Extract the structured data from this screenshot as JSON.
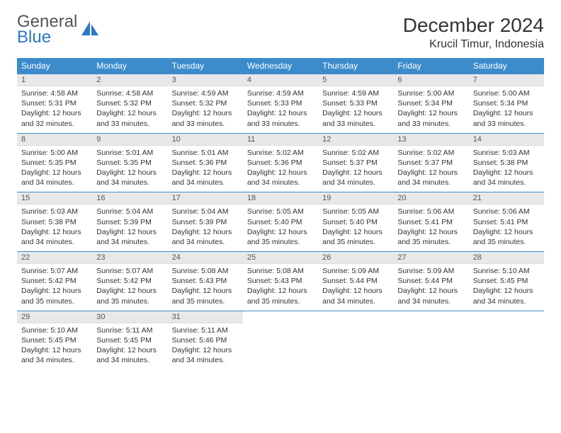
{
  "logo": {
    "line1": "General",
    "line2": "Blue"
  },
  "title": "December 2024",
  "location": "Krucil Timur, Indonesia",
  "colors": {
    "header_bg": "#3c8ccc",
    "header_text": "#ffffff",
    "daynum_bg": "#e8e8e8",
    "row_border": "#3c8ccc",
    "logo_gray": "#555555",
    "logo_blue": "#2b78c4",
    "body_text": "#333333"
  },
  "weekdays": [
    "Sunday",
    "Monday",
    "Tuesday",
    "Wednesday",
    "Thursday",
    "Friday",
    "Saturday"
  ],
  "days": [
    {
      "n": 1,
      "sr": "4:58 AM",
      "ss": "5:31 PM",
      "dl": "12 hours and 32 minutes."
    },
    {
      "n": 2,
      "sr": "4:58 AM",
      "ss": "5:32 PM",
      "dl": "12 hours and 33 minutes."
    },
    {
      "n": 3,
      "sr": "4:59 AM",
      "ss": "5:32 PM",
      "dl": "12 hours and 33 minutes."
    },
    {
      "n": 4,
      "sr": "4:59 AM",
      "ss": "5:33 PM",
      "dl": "12 hours and 33 minutes."
    },
    {
      "n": 5,
      "sr": "4:59 AM",
      "ss": "5:33 PM",
      "dl": "12 hours and 33 minutes."
    },
    {
      "n": 6,
      "sr": "5:00 AM",
      "ss": "5:34 PM",
      "dl": "12 hours and 33 minutes."
    },
    {
      "n": 7,
      "sr": "5:00 AM",
      "ss": "5:34 PM",
      "dl": "12 hours and 33 minutes."
    },
    {
      "n": 8,
      "sr": "5:00 AM",
      "ss": "5:35 PM",
      "dl": "12 hours and 34 minutes."
    },
    {
      "n": 9,
      "sr": "5:01 AM",
      "ss": "5:35 PM",
      "dl": "12 hours and 34 minutes."
    },
    {
      "n": 10,
      "sr": "5:01 AM",
      "ss": "5:36 PM",
      "dl": "12 hours and 34 minutes."
    },
    {
      "n": 11,
      "sr": "5:02 AM",
      "ss": "5:36 PM",
      "dl": "12 hours and 34 minutes."
    },
    {
      "n": 12,
      "sr": "5:02 AM",
      "ss": "5:37 PM",
      "dl": "12 hours and 34 minutes."
    },
    {
      "n": 13,
      "sr": "5:02 AM",
      "ss": "5:37 PM",
      "dl": "12 hours and 34 minutes."
    },
    {
      "n": 14,
      "sr": "5:03 AM",
      "ss": "5:38 PM",
      "dl": "12 hours and 34 minutes."
    },
    {
      "n": 15,
      "sr": "5:03 AM",
      "ss": "5:38 PM",
      "dl": "12 hours and 34 minutes."
    },
    {
      "n": 16,
      "sr": "5:04 AM",
      "ss": "5:39 PM",
      "dl": "12 hours and 34 minutes."
    },
    {
      "n": 17,
      "sr": "5:04 AM",
      "ss": "5:39 PM",
      "dl": "12 hours and 34 minutes."
    },
    {
      "n": 18,
      "sr": "5:05 AM",
      "ss": "5:40 PM",
      "dl": "12 hours and 35 minutes."
    },
    {
      "n": 19,
      "sr": "5:05 AM",
      "ss": "5:40 PM",
      "dl": "12 hours and 35 minutes."
    },
    {
      "n": 20,
      "sr": "5:06 AM",
      "ss": "5:41 PM",
      "dl": "12 hours and 35 minutes."
    },
    {
      "n": 21,
      "sr": "5:06 AM",
      "ss": "5:41 PM",
      "dl": "12 hours and 35 minutes."
    },
    {
      "n": 22,
      "sr": "5:07 AM",
      "ss": "5:42 PM",
      "dl": "12 hours and 35 minutes."
    },
    {
      "n": 23,
      "sr": "5:07 AM",
      "ss": "5:42 PM",
      "dl": "12 hours and 35 minutes."
    },
    {
      "n": 24,
      "sr": "5:08 AM",
      "ss": "5:43 PM",
      "dl": "12 hours and 35 minutes."
    },
    {
      "n": 25,
      "sr": "5:08 AM",
      "ss": "5:43 PM",
      "dl": "12 hours and 35 minutes."
    },
    {
      "n": 26,
      "sr": "5:09 AM",
      "ss": "5:44 PM",
      "dl": "12 hours and 34 minutes."
    },
    {
      "n": 27,
      "sr": "5:09 AM",
      "ss": "5:44 PM",
      "dl": "12 hours and 34 minutes."
    },
    {
      "n": 28,
      "sr": "5:10 AM",
      "ss": "5:45 PM",
      "dl": "12 hours and 34 minutes."
    },
    {
      "n": 29,
      "sr": "5:10 AM",
      "ss": "5:45 PM",
      "dl": "12 hours and 34 minutes."
    },
    {
      "n": 30,
      "sr": "5:11 AM",
      "ss": "5:45 PM",
      "dl": "12 hours and 34 minutes."
    },
    {
      "n": 31,
      "sr": "5:11 AM",
      "ss": "5:46 PM",
      "dl": "12 hours and 34 minutes."
    }
  ],
  "labels": {
    "sunrise": "Sunrise: ",
    "sunset": "Sunset: ",
    "daylight": "Daylight: "
  }
}
